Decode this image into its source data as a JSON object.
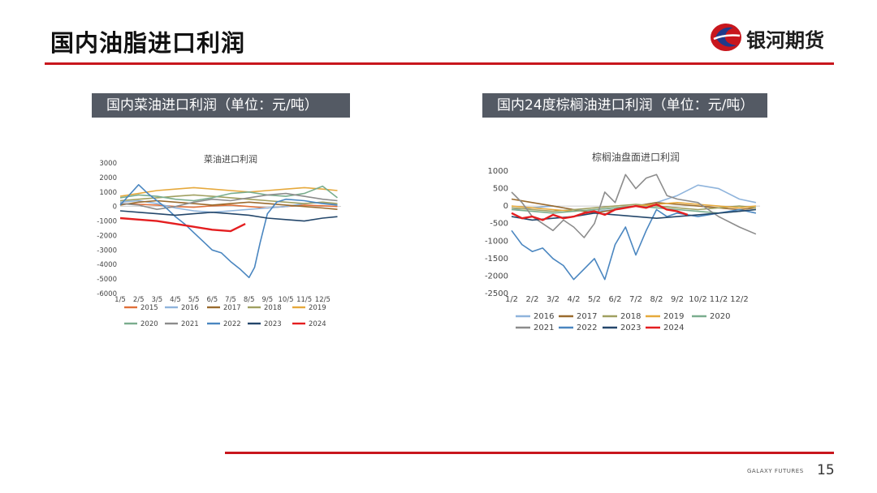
{
  "page": {
    "title": "国内油脂进口利润",
    "logo_text": "银河期货",
    "footer_brand": "GALAXY FUTURES",
    "page_number": "15"
  },
  "panels": [
    {
      "title": "国内菜油进口利润（单位：元/吨）"
    },
    {
      "title": "国内24度棕榈油进口利润（单位：元/吨）"
    }
  ],
  "chart_data": [
    {
      "type": "line",
      "title": "菜油进口利润",
      "x_tick_labels": [
        "1/5",
        "2/5",
        "3/5",
        "4/5",
        "5/5",
        "6/5",
        "7/5",
        "8/5",
        "9/5",
        "10/5",
        "11/5",
        "12/5"
      ],
      "xlim": [
        0,
        12
      ],
      "ylim": [
        -6000,
        3000
      ],
      "y_ticks": [
        3000,
        2000,
        1000,
        0,
        -1000,
        -2000,
        -3000,
        -4000,
        -5000,
        -6000
      ],
      "legend_position": "bottom",
      "series": [
        {
          "name": "2015",
          "color": "#e0703a",
          "x": [
            0,
            1,
            2,
            3,
            4,
            5,
            6,
            7,
            8,
            9,
            10,
            11,
            11.8
          ],
          "y": [
            200,
            150,
            100,
            0,
            -50,
            50,
            100,
            0,
            -100,
            0,
            100,
            50,
            0
          ]
        },
        {
          "name": "2016",
          "color": "#8fb4dc",
          "x": [
            0,
            1,
            2,
            3,
            4,
            5,
            6,
            7,
            8,
            9,
            10,
            11,
            11.8
          ],
          "y": [
            300,
            400,
            200,
            -100,
            -300,
            -400,
            -300,
            -200,
            -100,
            0,
            200,
            300,
            100
          ]
        },
        {
          "name": "2017",
          "color": "#9a6b2e",
          "x": [
            0,
            1,
            2,
            3,
            4,
            5,
            6,
            7,
            8,
            9,
            10,
            11,
            11.8
          ],
          "y": [
            100,
            300,
            400,
            300,
            200,
            100,
            200,
            300,
            200,
            100,
            0,
            -100,
            -200
          ]
        },
        {
          "name": "2018",
          "color": "#a0a060",
          "x": [
            0,
            1,
            2,
            3,
            4,
            5,
            6,
            7,
            8,
            9,
            10,
            11,
            11.8
          ],
          "y": [
            400,
            500,
            600,
            700,
            800,
            700,
            600,
            500,
            400,
            300,
            200,
            300,
            200
          ]
        },
        {
          "name": "2019",
          "color": "#e6a93c",
          "x": [
            0,
            1,
            2,
            3,
            4,
            5,
            6,
            7,
            8,
            9,
            10,
            11,
            11.8
          ],
          "y": [
            700,
            900,
            1100,
            1200,
            1300,
            1200,
            1100,
            1000,
            1100,
            1200,
            1300,
            1200,
            1100
          ]
        },
        {
          "name": "2020",
          "color": "#7aad8e",
          "x": [
            0,
            1,
            2,
            3,
            4,
            5,
            6,
            7,
            8,
            9,
            10,
            11,
            11.8
          ],
          "y": [
            600,
            800,
            700,
            500,
            400,
            600,
            900,
            1000,
            800,
            700,
            900,
            1400,
            600
          ]
        },
        {
          "name": "2021",
          "color": "#8c8c8c",
          "x": [
            0,
            1,
            2,
            3,
            4,
            5,
            6,
            7,
            8,
            9,
            10,
            11,
            11.8
          ],
          "y": [
            200,
            100,
            -200,
            0,
            300,
            500,
            400,
            600,
            800,
            900,
            700,
            500,
            400
          ]
        },
        {
          "name": "2022",
          "color": "#4a86c0",
          "x": [
            0,
            0.5,
            1,
            1.5,
            2,
            2.5,
            3,
            3.5,
            4,
            4.5,
            5,
            5.5,
            6,
            6.5,
            7,
            7.3,
            7.6,
            8,
            8.5,
            9,
            10,
            11,
            11.8
          ],
          "y": [
            100,
            800,
            1500,
            900,
            400,
            -100,
            -700,
            -1200,
            -1800,
            -2400,
            -3000,
            -3200,
            -3800,
            -4300,
            -4900,
            -4200,
            -2500,
            -500,
            300,
            500,
            400,
            200,
            100
          ]
        },
        {
          "name": "2023",
          "color": "#24476b",
          "x": [
            0,
            1,
            2,
            3,
            4,
            5,
            6,
            7,
            8,
            9,
            10,
            11,
            11.8
          ],
          "y": [
            -300,
            -400,
            -500,
            -600,
            -500,
            -400,
            -500,
            -600,
            -800,
            -900,
            -1000,
            -800,
            -700
          ]
        },
        {
          "name": "2024",
          "color": "#e41e20",
          "x": [
            0,
            1,
            2,
            3,
            4,
            5,
            6,
            6.8
          ],
          "y": [
            -800,
            -900,
            -1000,
            -1200,
            -1400,
            -1600,
            -1700,
            -1200
          ]
        }
      ]
    },
    {
      "type": "line",
      "title": "棕榈油盘面进口利润",
      "x_tick_labels": [
        "1/2",
        "2/2",
        "3/2",
        "4/2",
        "5/2",
        "6/2",
        "7/2",
        "8/2",
        "9/2",
        "10/2",
        "11/2",
        "12/2"
      ],
      "xlim": [
        0,
        12
      ],
      "ylim": [
        -2500,
        1000
      ],
      "y_ticks": [
        1000,
        500,
        0,
        -500,
        -1000,
        -1500,
        -2000,
        -2500
      ],
      "legend_position": "bottom",
      "series": [
        {
          "name": "2016",
          "color": "#8fb4dc",
          "x": [
            0,
            1,
            2,
            3,
            4,
            5,
            6,
            7,
            8,
            9,
            10,
            11,
            11.8
          ],
          "y": [
            -100,
            -50,
            0,
            -100,
            -150,
            -100,
            0,
            100,
            300,
            600,
            500,
            200,
            100
          ]
        },
        {
          "name": "2017",
          "color": "#9a6b2e",
          "x": [
            0,
            1,
            2,
            3,
            4,
            5,
            6,
            7,
            8,
            9,
            10,
            11,
            11.8
          ],
          "y": [
            200,
            100,
            0,
            -100,
            -200,
            -100,
            0,
            100,
            50,
            0,
            -50,
            -100,
            -50
          ]
        },
        {
          "name": "2018",
          "color": "#a0a060",
          "x": [
            0,
            1,
            2,
            3,
            4,
            5,
            6,
            7,
            8,
            9,
            10,
            11,
            11.8
          ],
          "y": [
            -50,
            -100,
            -150,
            -100,
            -50,
            0,
            50,
            0,
            -50,
            -100,
            -50,
            0,
            -50
          ]
        },
        {
          "name": "2019",
          "color": "#e6a93c",
          "x": [
            0,
            1,
            2,
            3,
            4,
            5,
            6,
            7,
            8,
            9,
            10,
            11,
            11.8
          ],
          "y": [
            0,
            -50,
            -100,
            -150,
            -100,
            -50,
            0,
            50,
            100,
            50,
            0,
            -50,
            0
          ]
        },
        {
          "name": "2020",
          "color": "#7aad8e",
          "x": [
            0,
            1,
            2,
            3,
            4,
            5,
            6,
            7,
            8,
            9,
            10,
            11,
            11.8
          ],
          "y": [
            -100,
            -150,
            -200,
            -150,
            -100,
            -50,
            0,
            -50,
            -100,
            -150,
            -200,
            -150,
            -100
          ]
        },
        {
          "name": "2021",
          "color": "#8c8c8c",
          "x": [
            0,
            0.5,
            1,
            1.5,
            2,
            2.5,
            3,
            3.5,
            4,
            4.5,
            5,
            5.5,
            6,
            6.5,
            7,
            7.5,
            8,
            9,
            10,
            11,
            11.8
          ],
          "y": [
            400,
            100,
            -300,
            -500,
            -700,
            -400,
            -600,
            -900,
            -500,
            400,
            100,
            900,
            500,
            800,
            900,
            300,
            200,
            100,
            -300,
            -600,
            -800
          ]
        },
        {
          "name": "2022",
          "color": "#4a86c0",
          "x": [
            0,
            0.5,
            1,
            1.5,
            2,
            2.5,
            3,
            3.5,
            4,
            4.5,
            5,
            5.5,
            6,
            6.5,
            7,
            7.5,
            8,
            9,
            10,
            11,
            11.8
          ],
          "y": [
            -700,
            -1100,
            -1300,
            -1200,
            -1500,
            -1700,
            -2100,
            -1800,
            -1500,
            -2100,
            -1100,
            -600,
            -1400,
            -700,
            -100,
            -300,
            -200,
            -300,
            -200,
            -100,
            -200
          ]
        },
        {
          "name": "2023",
          "color": "#24476b",
          "x": [
            0,
            1,
            2,
            3,
            4,
            5,
            6,
            7,
            8,
            9,
            10,
            11,
            11.8
          ],
          "y": [
            -300,
            -400,
            -350,
            -300,
            -200,
            -250,
            -300,
            -350,
            -300,
            -250,
            -200,
            -150,
            -100
          ]
        },
        {
          "name": "2024",
          "color": "#e41e20",
          "x": [
            0,
            0.5,
            1,
            1.5,
            2,
            2.5,
            3,
            3.5,
            4,
            4.5,
            5,
            5.5,
            6,
            6.5,
            7,
            7.5,
            8,
            8.5
          ],
          "y": [
            -200,
            -350,
            -300,
            -400,
            -250,
            -350,
            -300,
            -200,
            -150,
            -250,
            -100,
            -50,
            0,
            -50,
            50,
            -100,
            -150,
            -250
          ]
        }
      ]
    }
  ]
}
